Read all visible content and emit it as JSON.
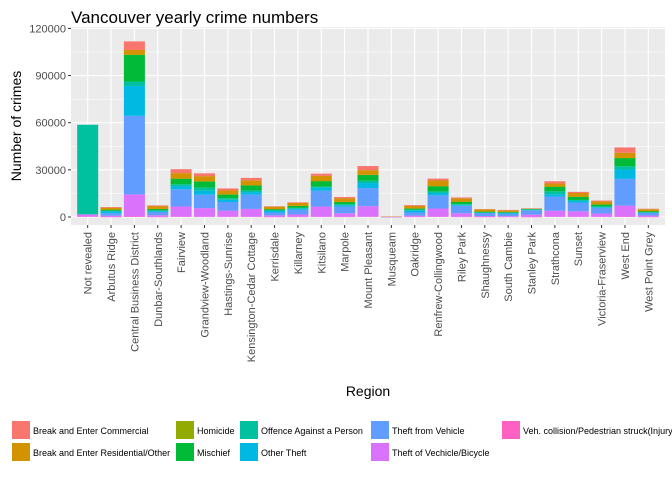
{
  "chart_data": {
    "type": "bar",
    "stacked": true,
    "title": "Vancouver yearly crime numbers",
    "xlabel": "Region",
    "ylabel": "Number of crimes",
    "ylim": [
      0,
      126000
    ],
    "yticks": [
      0,
      30000,
      60000,
      90000,
      120000
    ],
    "grid": true,
    "legend_position": "bottom",
    "categories": [
      "Not revealed",
      "Arbutus Ridge",
      "Central Business District",
      "Dunbar-Southlands",
      "Fairview",
      "Grandview-Woodland",
      "Hastings-Sunrise",
      "Kensington-Cedar Cottage",
      "Kerrisdale",
      "Killarney",
      "Kitsilano",
      "Marpole",
      "Mount Pleasant",
      "Musqueam",
      "Oakridge",
      "Renfrew-Collingwood",
      "Riley Park",
      "Shaughnessy",
      "South Cambie",
      "Stanley Park",
      "Strathcona",
      "Sunset",
      "Victoria-Fraserview",
      "West End",
      "West Point Grey"
    ],
    "series": [
      {
        "name": "Break and Enter Commercial",
        "color": "#F8766D",
        "values": [
          0,
          400,
          5500,
          400,
          2500,
          1800,
          1300,
          1500,
          300,
          400,
          1400,
          900,
          2600,
          30,
          500,
          1200,
          700,
          200,
          300,
          100,
          1400,
          700,
          500,
          3400,
          300
        ]
      },
      {
        "name": "Break and Enter Residential/Other",
        "color": "#D39200",
        "values": [
          0,
          1200,
          3000,
          1800,
          3500,
          3300,
          2500,
          3200,
          1500,
          1800,
          3300,
          2200,
          3000,
          30,
          1600,
          3600,
          2000,
          1300,
          900,
          50,
          2000,
          2400,
          1900,
          3300,
          1200
        ]
      },
      {
        "name": "Homicide",
        "color": "#93AA00",
        "values": [
          0,
          10,
          50,
          10,
          20,
          30,
          30,
          30,
          10,
          20,
          20,
          20,
          30,
          0,
          10,
          40,
          20,
          10,
          10,
          10,
          40,
          20,
          20,
          20,
          10
        ]
      },
      {
        "name": "Mischief",
        "color": "#00BA38",
        "values": [
          0,
          800,
          17000,
          1000,
          3600,
          4000,
          2400,
          3200,
          800,
          1300,
          3500,
          1500,
          3700,
          30,
          900,
          3300,
          1500,
          600,
          500,
          500,
          2900,
          2000,
          1300,
          5300,
          700
        ]
      },
      {
        "name": "Offence Against a Person",
        "color": "#00C19F",
        "values": [
          57000,
          200,
          2800,
          200,
          1100,
          2000,
          1000,
          1100,
          100,
          500,
          700,
          600,
          1500,
          30,
          300,
          1000,
          500,
          100,
          150,
          300,
          1900,
          600,
          500,
          2000,
          200
        ]
      },
      {
        "name": "Other Theft",
        "color": "#00B9E3",
        "values": [
          0,
          1300,
          19000,
          700,
          2000,
          2500,
          1400,
          1700,
          1300,
          700,
          2000,
          800,
          3200,
          30,
          1400,
          1500,
          500,
          300,
          500,
          200,
          1500,
          1100,
          500,
          6000,
          300
        ]
      },
      {
        "name": "Theft from Vehicle",
        "color": "#619CFF",
        "values": [
          0,
          1600,
          50000,
          2100,
          11000,
          8500,
          5500,
          9000,
          1800,
          3000,
          10000,
          4300,
          11500,
          100,
          2000,
          8400,
          4800,
          1900,
          1600,
          2800,
          9000,
          5500,
          3500,
          17000,
          1600
        ]
      },
      {
        "name": "Theft of Vechicle/Bicycle",
        "color": "#DB72FB",
        "values": [
          1500,
          800,
          14000,
          1100,
          6500,
          5500,
          3900,
          5000,
          1000,
          1500,
          6500,
          2300,
          6700,
          30,
          800,
          5200,
          2300,
          600,
          500,
          1500,
          3800,
          3500,
          2100,
          7000,
          900
        ]
      },
      {
        "name": "Veh. collision/Pedestrian struck(Injury)",
        "color": "#FF61C3",
        "values": [
          200,
          30,
          400,
          50,
          200,
          150,
          150,
          150,
          50,
          100,
          150,
          100,
          200,
          20,
          100,
          200,
          100,
          30,
          40,
          20,
          200,
          150,
          150,
          250,
          40
        ]
      }
    ]
  }
}
